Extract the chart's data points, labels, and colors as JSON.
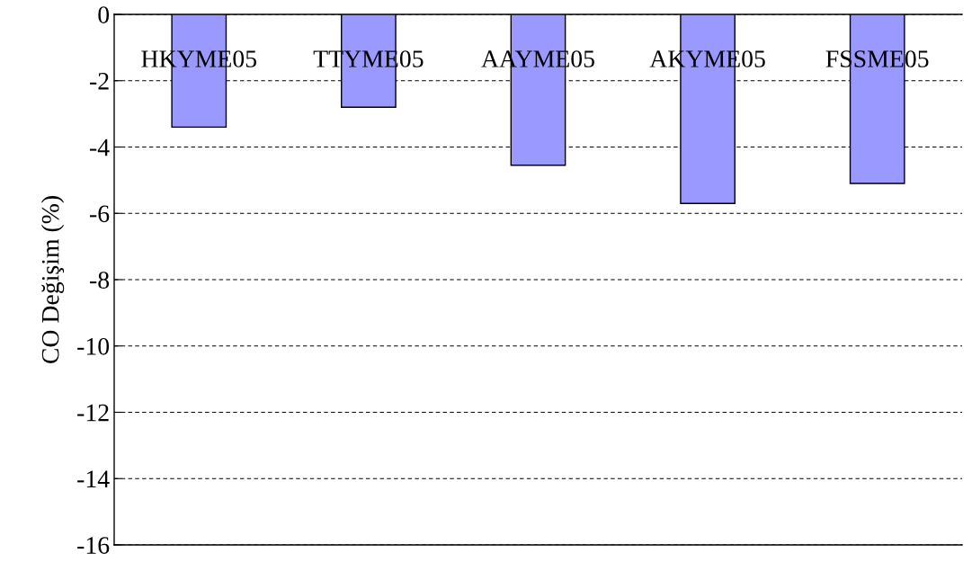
{
  "chart_data": {
    "type": "bar",
    "ylabel": "CO Değişim (%)",
    "categories": [
      "HKYME05",
      "TTYME05",
      "AAYME05",
      "AKYME05",
      "FSSME05"
    ],
    "values": [
      -3.4,
      -2.8,
      -4.55,
      -5.7,
      -5.1
    ],
    "color": "#9999ff",
    "ylim": [
      -16,
      0
    ],
    "yticks": [
      0,
      -2,
      -4,
      -6,
      -8,
      -10,
      -12,
      -14,
      -16
    ],
    "grid": "y",
    "legend": false
  }
}
